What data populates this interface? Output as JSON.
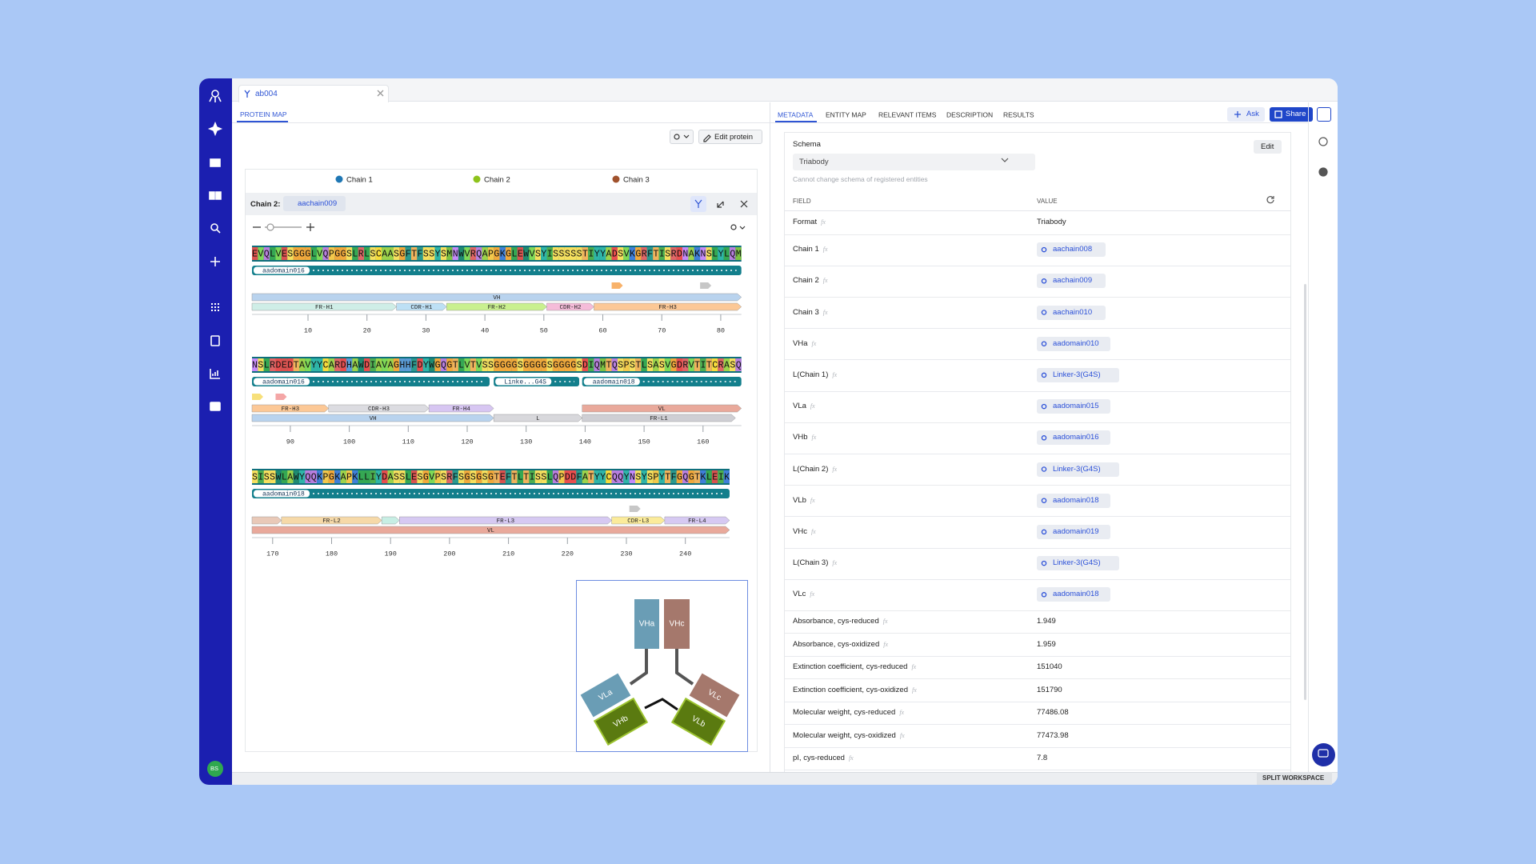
{
  "tab": {
    "title": "ab004"
  },
  "left": {
    "subtab": "PROTEIN MAP",
    "edit_button": "Edit protein",
    "chains": [
      "Chain 1",
      "Chain 2",
      "Chain 3"
    ],
    "chain_colors": [
      "#1f77b4",
      "#8ec31c",
      "#a0522d"
    ],
    "selected_chain": {
      "label": "Chain 2:",
      "chip": "aachain009"
    },
    "sequence_rows": [
      {
        "sequence": "EVQLVESGGGLVQPGGSLRLSCAASGFTFSSYSMNWVRQAPGKGLEWVSYISSSSSTIYYADSVKGRFTISRDNAKNSLYLQM",
        "ticks": [
          10,
          20,
          30,
          40,
          50,
          60,
          70,
          80
        ],
        "domains": [
          "aadomain016"
        ],
        "features": [
          "VH",
          "FR-H1",
          "CDR-H1",
          "FR-H2",
          "CDR-H2",
          "FR-H3"
        ]
      },
      {
        "sequence": "NSLRDEDTAVYYCARDHAWDIAVAGHHFDYWGQGTLVTVSSGGGGSGGGGSGGGGSDIQMTQSPSTLSASVGDRVTITCRASQ",
        "ticks": [
          90,
          100,
          110,
          120,
          130,
          140,
          150,
          160
        ],
        "domains": [
          "aadomain016",
          "Linke...G4S",
          "aadomain018"
        ],
        "features": [
          "FR-H3",
          "CDR-H3",
          "FR-H4",
          "VL",
          "VH",
          "L",
          "FR-L1"
        ]
      },
      {
        "sequence": "SISSWLAWYQQKPGKAPKLLIYDASSLESGVPSRFSGSGSGTEFTLTISSLQPDDFATYYCQQYNSYSPYTFGQGTKLEIK",
        "ticks": [
          170,
          180,
          190,
          200,
          210,
          220,
          230,
          240
        ],
        "domains": [
          "aadomain018"
        ],
        "features": [
          "FR-L2",
          "FR-L3",
          "CDR-L3",
          "FR-L4",
          "VL"
        ]
      }
    ],
    "diagram": [
      "VHa",
      "VHc",
      "VLa",
      "VLc",
      "VHb",
      "VLb"
    ]
  },
  "right": {
    "tabs": [
      "METADATA",
      "ENTITY MAP",
      "RELEVANT ITEMS",
      "DESCRIPTION",
      "RESULTS"
    ],
    "ask": "Ask",
    "share": "Share",
    "schema": {
      "label": "Schema",
      "value": "Triabody",
      "edit": "Edit",
      "note": "Cannot change schema of registered entities"
    },
    "table": {
      "headers": [
        "FIELD",
        "VALUE"
      ],
      "formula_icon": "fx",
      "rows": [
        {
          "field": "Format",
          "value": "Triabody"
        },
        {
          "field": "Chain 1",
          "chip": "aachain008"
        },
        {
          "field": "Chain 2",
          "chip": "aachain009"
        },
        {
          "field": "Chain 3",
          "chip": "aachain010"
        },
        {
          "field": "VHa",
          "chip": "aadomain010"
        },
        {
          "field": "L(Chain 1)",
          "chip": "Linker-3(G4S)"
        },
        {
          "field": "VLa",
          "chip": "aadomain015"
        },
        {
          "field": "VHb",
          "chip": "aadomain016"
        },
        {
          "field": "L(Chain 2)",
          "chip": "Linker-3(G4S)"
        },
        {
          "field": "VLb",
          "chip": "aadomain018"
        },
        {
          "field": "VHc",
          "chip": "aadomain019"
        },
        {
          "field": "L(Chain 3)",
          "chip": "Linker-3(G4S)"
        },
        {
          "field": "VLc",
          "chip": "aadomain018"
        },
        {
          "field": "Absorbance, cys-reduced",
          "value": 1.949
        },
        {
          "field": "Absorbance, cys-oxidized",
          "value": 1.959
        },
        {
          "field": "Extinction coefficient, cys-reduced",
          "value": 151040
        },
        {
          "field": "Extinction coefficient, cys-oxidized",
          "value": 151790
        },
        {
          "field": "Molecular weight, cys-reduced",
          "value": 77486.08
        },
        {
          "field": "Molecular weight, cys-oxidized",
          "value": 77473.98
        },
        {
          "field": "pI, cys-reduced",
          "value": 7.8
        }
      ]
    }
  },
  "footer": {
    "split": "SPLIT WORKSPACE"
  },
  "user": {
    "initials": "BS"
  }
}
